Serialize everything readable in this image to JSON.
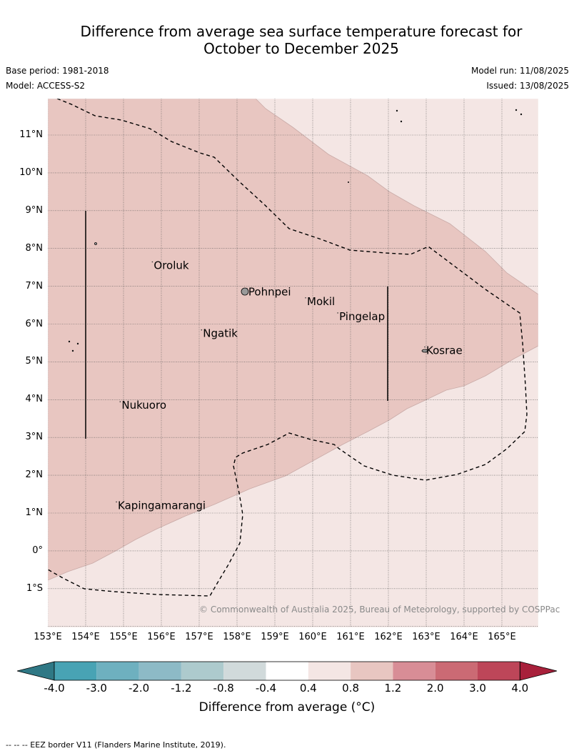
{
  "title_line1": "Difference from average sea surface temperature forecast for",
  "title_line2": "October to December 2025",
  "base_period": "Base period: 1981-2018",
  "model": "Model: ACCESS-S2",
  "model_run": "Model run: 11/08/2025",
  "issued": "Issued: 13/08/2025",
  "copyright": "© Commonwealth of Australia 2025, Bureau of Meteorology, supported by COSPPac",
  "lat_labels": [
    "11°N",
    "10°N",
    "9°N",
    "8°N",
    "7°N",
    "6°N",
    "5°N",
    "4°N",
    "3°N",
    "2°N",
    "1°N",
    "0°",
    "1°S"
  ],
  "lon_labels": [
    "153°E",
    "154°E",
    "155°E",
    "156°E",
    "157°E",
    "158°E",
    "159°E",
    "160°E",
    "161°E",
    "162°E",
    "163°E",
    "164°E",
    "165°E"
  ],
  "places": [
    {
      "name": "Oroluk",
      "lon": 155.8,
      "lat": 7.55
    },
    {
      "name": "Pohnpei",
      "lon": 158.3,
      "lat": 6.85
    },
    {
      "name": "Mokil",
      "lon": 159.85,
      "lat": 6.6
    },
    {
      "name": "Pingelap",
      "lon": 160.7,
      "lat": 6.2
    },
    {
      "name": "Ngatik",
      "lon": 157.1,
      "lat": 5.75
    },
    {
      "name": "Kosrae",
      "lon": 163.0,
      "lat": 5.3
    },
    {
      "name": "Nukuoro",
      "lon": 154.95,
      "lat": 3.85
    },
    {
      "name": "Kapingamarangi",
      "lon": 154.85,
      "lat": 1.2
    }
  ],
  "colorbar": {
    "ticks": [
      "-4.0",
      "-3.0",
      "-2.0",
      "-1.2",
      "-0.8",
      "-0.4",
      "0.4",
      "0.8",
      "1.2",
      "2.0",
      "3.0",
      "4.0"
    ],
    "colors": [
      "#48a3b4",
      "#6eb0bf",
      "#8dbac6",
      "#adcacd",
      "#d1dadb",
      "#ffffff",
      "#f4e6e4",
      "#e8c6c1",
      "#d88d96",
      "#cb6a74",
      "#bd4659"
    ],
    "under_color": "#2f7885",
    "over_color": "#a8203b",
    "label": "Difference from average (°C)"
  },
  "fill_colors": {
    "band_0p8_1p2": "#e8c6c1",
    "band_0p4_0p8": "#f4e6e4"
  },
  "footer": "-- -- -- EEZ border V11 (Flanders Marine Institute, 2019)."
}
